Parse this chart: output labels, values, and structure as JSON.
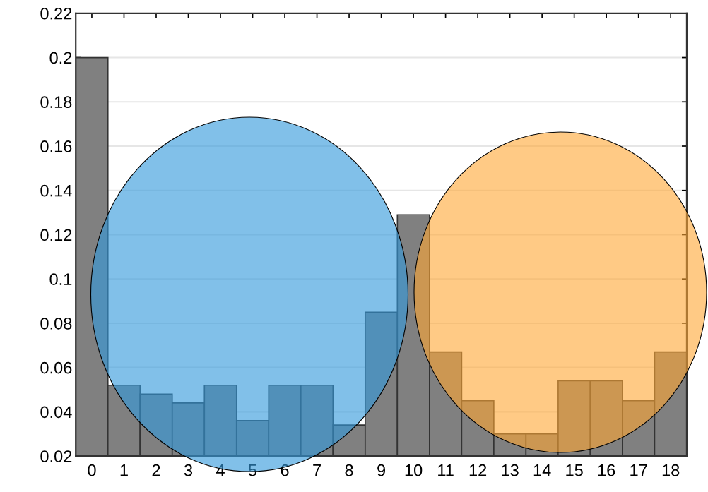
{
  "chart_data": {
    "type": "bar",
    "categories": [
      "0",
      "1",
      "2",
      "3",
      "4",
      "5",
      "6",
      "7",
      "8",
      "9",
      "10",
      "11",
      "12",
      "13",
      "14",
      "15",
      "16",
      "17",
      "18"
    ],
    "values": [
      0.2,
      0.052,
      0.048,
      0.044,
      0.052,
      0.036,
      0.052,
      0.052,
      0.034,
      0.085,
      0.129,
      0.067,
      0.045,
      0.03,
      0.03,
      0.054,
      0.054,
      0.045,
      0.067
    ],
    "color": "#808080",
    "ylim": [
      0.02,
      0.22
    ],
    "yticks": [
      0.02,
      0.04,
      0.06,
      0.08,
      0.1,
      0.12,
      0.14,
      0.16,
      0.18,
      0.2,
      0.22
    ],
    "grid": "y"
  }
}
